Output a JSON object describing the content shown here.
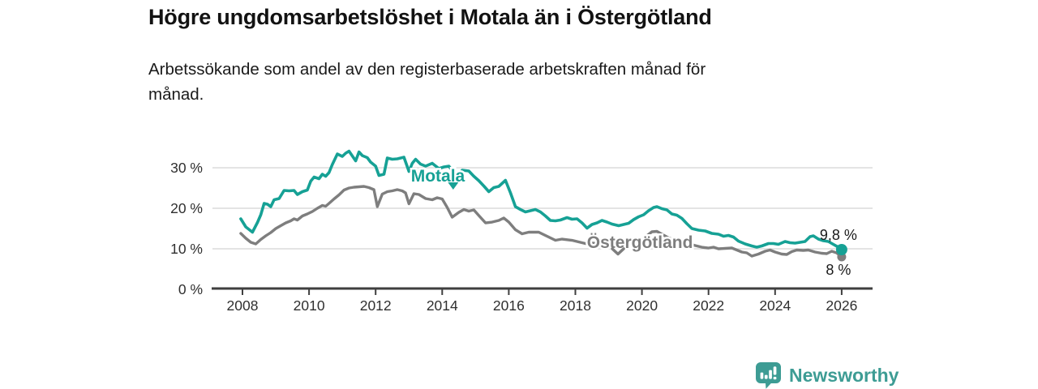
{
  "header": {
    "title": "Högre ungdomsarbetslöshet i Motala än i Östergötland",
    "subtitle_line1": "Arbetssökande som andel av den registerbaserade arbetskraften månad för",
    "subtitle_line2": "månad."
  },
  "footer": {
    "brand": "Newsworthy",
    "logo_icon": "newsworthy-speech-bubble-bar-chart-icon",
    "brand_color": "#3d9c94"
  },
  "colors": {
    "motala": "#16a195",
    "ostergotland": "#7e7e7e",
    "grid": "#dcdcdc",
    "axis": "#3f3f3f",
    "tick_text": "#2f2f2f",
    "annotation_text": "#1a1a1a",
    "background": "#ffffff"
  },
  "chart_data": {
    "type": "line",
    "title": "Högre ungdomsarbetslöshet i Motala än i Östergötland",
    "subtitle": "Arbetssökande som andel av den registerbaserade arbetskraften månad för månad.",
    "x_unit": "year (monthly observations)",
    "y_unit": "percent of labour force",
    "xlim": [
      2007.9,
      2026.95
    ],
    "ylim": [
      0,
      35.4
    ],
    "grid": "horizontal-only",
    "legend_position": "inline-labels-on-lines",
    "x_ticks": [
      2008,
      2010,
      2012,
      2014,
      2016,
      2018,
      2020,
      2022,
      2024,
      2026
    ],
    "y_ticks": [
      {
        "value": 0,
        "label": "0 %"
      },
      {
        "value": 10,
        "label": "10 %"
      },
      {
        "value": 20,
        "label": "20 %"
      },
      {
        "value": 30,
        "label": "30 %"
      }
    ],
    "series": [
      {
        "name": "Östergötland",
        "color": "#7e7e7e",
        "line_width": 3.4,
        "end_dot_radius": 5.5,
        "end_label": "8 %",
        "end_label_position": "below",
        "last_value": 8,
        "label": {
          "text": "Östergötland",
          "x": 2019.94,
          "y": 11.6
        },
        "pointer": {
          "shape": "chevron-down",
          "x": 2019.28,
          "y": 9.4
        },
        "points": [
          [
            2007.95,
            13.8
          ],
          [
            2008.1,
            12.6
          ],
          [
            2008.25,
            11.6
          ],
          [
            2008.4,
            11.2
          ],
          [
            2008.55,
            12.3
          ],
          [
            2008.7,
            13.2
          ],
          [
            2008.85,
            14.0
          ],
          [
            2009.0,
            15.0
          ],
          [
            2009.15,
            15.7
          ],
          [
            2009.3,
            16.4
          ],
          [
            2009.45,
            16.9
          ],
          [
            2009.55,
            17.4
          ],
          [
            2009.65,
            17.1
          ],
          [
            2009.8,
            18.1
          ],
          [
            2009.95,
            18.6
          ],
          [
            2010.1,
            19.2
          ],
          [
            2010.25,
            20.0
          ],
          [
            2010.4,
            20.7
          ],
          [
            2010.5,
            20.5
          ],
          [
            2010.6,
            21.2
          ],
          [
            2010.75,
            22.3
          ],
          [
            2010.9,
            23.3
          ],
          [
            2011.05,
            24.5
          ],
          [
            2011.2,
            25.0
          ],
          [
            2011.35,
            25.2
          ],
          [
            2011.5,
            25.3
          ],
          [
            2011.65,
            25.4
          ],
          [
            2011.8,
            25.1
          ],
          [
            2011.95,
            24.6
          ],
          [
            2012.05,
            20.4
          ],
          [
            2012.2,
            23.5
          ],
          [
            2012.35,
            24.1
          ],
          [
            2012.5,
            24.3
          ],
          [
            2012.65,
            24.6
          ],
          [
            2012.8,
            24.3
          ],
          [
            2012.9,
            23.8
          ],
          [
            2013.0,
            21.1
          ],
          [
            2013.15,
            23.6
          ],
          [
            2013.3,
            23.4
          ],
          [
            2013.5,
            22.4
          ],
          [
            2013.7,
            22.1
          ],
          [
            2013.85,
            22.6
          ],
          [
            2014.0,
            22.3
          ],
          [
            2014.15,
            20.2
          ],
          [
            2014.3,
            17.8
          ],
          [
            2014.5,
            19.0
          ],
          [
            2014.65,
            19.7
          ],
          [
            2014.8,
            19.3
          ],
          [
            2014.95,
            19.6
          ],
          [
            2015.1,
            18.2
          ],
          [
            2015.3,
            16.4
          ],
          [
            2015.5,
            16.6
          ],
          [
            2015.7,
            17.0
          ],
          [
            2015.85,
            17.6
          ],
          [
            2016.0,
            16.6
          ],
          [
            2016.2,
            14.7
          ],
          [
            2016.4,
            13.7
          ],
          [
            2016.6,
            14.1
          ],
          [
            2016.9,
            14.1
          ],
          [
            2017.15,
            13.1
          ],
          [
            2017.4,
            12.1
          ],
          [
            2017.6,
            12.4
          ],
          [
            2017.9,
            12.1
          ],
          [
            2018.1,
            11.7
          ],
          [
            2018.3,
            11.3
          ],
          [
            2018.5,
            11.4
          ],
          [
            2018.7,
            11.3
          ],
          [
            2018.9,
            11.1
          ],
          [
            2019.1,
            10.9
          ],
          [
            2019.3,
            11.0
          ],
          [
            2019.5,
            11.2
          ],
          [
            2019.7,
            11.5
          ],
          [
            2019.9,
            12.0
          ],
          [
            2020.1,
            12.9
          ],
          [
            2020.3,
            14.2
          ],
          [
            2020.45,
            14.3
          ],
          [
            2020.6,
            13.6
          ],
          [
            2020.8,
            12.7
          ],
          [
            2021.0,
            12.2
          ],
          [
            2021.2,
            11.8
          ],
          [
            2021.4,
            11.3
          ],
          [
            2021.6,
            10.8
          ],
          [
            2021.8,
            10.4
          ],
          [
            2022.0,
            10.2
          ],
          [
            2022.15,
            10.4
          ],
          [
            2022.3,
            10.0
          ],
          [
            2022.5,
            10.1
          ],
          [
            2022.7,
            10.2
          ],
          [
            2022.85,
            9.7
          ],
          [
            2023.0,
            9.2
          ],
          [
            2023.15,
            9.0
          ],
          [
            2023.3,
            8.2
          ],
          [
            2023.5,
            8.7
          ],
          [
            2023.7,
            9.4
          ],
          [
            2023.85,
            9.7
          ],
          [
            2024.0,
            9.2
          ],
          [
            2024.2,
            8.7
          ],
          [
            2024.35,
            8.6
          ],
          [
            2024.5,
            9.3
          ],
          [
            2024.65,
            9.7
          ],
          [
            2024.85,
            9.6
          ],
          [
            2025.0,
            9.7
          ],
          [
            2025.2,
            9.2
          ],
          [
            2025.4,
            8.9
          ],
          [
            2025.55,
            8.8
          ],
          [
            2025.7,
            9.4
          ],
          [
            2025.85,
            9.0
          ],
          [
            2026.0,
            8.0
          ]
        ]
      },
      {
        "name": "Motala",
        "color": "#16a195",
        "line_width": 3.6,
        "end_dot_radius": 7,
        "end_label": "9,8 %",
        "end_label_position": "above",
        "last_value": 9.8,
        "label": {
          "text": "Motala",
          "x": 2013.87,
          "y": 28.0
        },
        "pointer": {
          "shape": "triangle-down",
          "x": 2014.33,
          "y": 25.5
        },
        "points": [
          [
            2007.95,
            17.4
          ],
          [
            2008.1,
            15.4
          ],
          [
            2008.3,
            14.1
          ],
          [
            2008.45,
            16.5
          ],
          [
            2008.55,
            18.4
          ],
          [
            2008.65,
            21.2
          ],
          [
            2008.75,
            21.0
          ],
          [
            2008.85,
            20.4
          ],
          [
            2008.95,
            22.1
          ],
          [
            2009.1,
            22.4
          ],
          [
            2009.25,
            24.4
          ],
          [
            2009.4,
            24.3
          ],
          [
            2009.55,
            24.4
          ],
          [
            2009.65,
            23.4
          ],
          [
            2009.8,
            24.1
          ],
          [
            2009.95,
            24.5
          ],
          [
            2010.05,
            26.7
          ],
          [
            2010.15,
            27.7
          ],
          [
            2010.3,
            27.3
          ],
          [
            2010.4,
            28.4
          ],
          [
            2010.5,
            27.9
          ],
          [
            2010.6,
            28.8
          ],
          [
            2010.7,
            30.8
          ],
          [
            2010.85,
            33.4
          ],
          [
            2011.0,
            32.8
          ],
          [
            2011.1,
            33.6
          ],
          [
            2011.2,
            34.1
          ],
          [
            2011.3,
            32.9
          ],
          [
            2011.4,
            31.7
          ],
          [
            2011.5,
            33.9
          ],
          [
            2011.6,
            33.0
          ],
          [
            2011.75,
            32.5
          ],
          [
            2011.85,
            31.4
          ],
          [
            2012.0,
            30.4
          ],
          [
            2012.1,
            28.1
          ],
          [
            2012.25,
            28.4
          ],
          [
            2012.35,
            32.4
          ],
          [
            2012.5,
            32.1
          ],
          [
            2012.65,
            32.2
          ],
          [
            2012.85,
            32.6
          ],
          [
            2013.0,
            29.1
          ],
          [
            2013.1,
            31.1
          ],
          [
            2013.2,
            32.1
          ],
          [
            2013.35,
            30.9
          ],
          [
            2013.5,
            30.4
          ],
          [
            2013.7,
            31.1
          ],
          [
            2013.9,
            29.8
          ],
          [
            2014.05,
            30.2
          ],
          [
            2014.2,
            30.4
          ],
          [
            2014.45,
            27.7
          ],
          [
            2014.6,
            29.4
          ],
          [
            2014.8,
            29.2
          ],
          [
            2014.95,
            27.9
          ],
          [
            2015.1,
            26.8
          ],
          [
            2015.25,
            25.5
          ],
          [
            2015.4,
            24.1
          ],
          [
            2015.55,
            25.1
          ],
          [
            2015.7,
            25.4
          ],
          [
            2015.9,
            26.9
          ],
          [
            2016.05,
            23.8
          ],
          [
            2016.2,
            20.4
          ],
          [
            2016.35,
            19.7
          ],
          [
            2016.5,
            19.1
          ],
          [
            2016.65,
            19.4
          ],
          [
            2016.8,
            19.7
          ],
          [
            2016.95,
            19.1
          ],
          [
            2017.1,
            18.1
          ],
          [
            2017.25,
            17.0
          ],
          [
            2017.4,
            16.9
          ],
          [
            2017.55,
            17.1
          ],
          [
            2017.75,
            17.7
          ],
          [
            2017.9,
            17.3
          ],
          [
            2018.05,
            17.4
          ],
          [
            2018.2,
            16.4
          ],
          [
            2018.35,
            15.1
          ],
          [
            2018.5,
            16.0
          ],
          [
            2018.65,
            16.4
          ],
          [
            2018.8,
            17.0
          ],
          [
            2018.95,
            16.6
          ],
          [
            2019.1,
            16.1
          ],
          [
            2019.3,
            15.7
          ],
          [
            2019.45,
            16.0
          ],
          [
            2019.6,
            16.3
          ],
          [
            2019.75,
            17.2
          ],
          [
            2019.9,
            17.9
          ],
          [
            2020.05,
            18.4
          ],
          [
            2020.2,
            19.4
          ],
          [
            2020.35,
            20.2
          ],
          [
            2020.45,
            20.4
          ],
          [
            2020.6,
            19.9
          ],
          [
            2020.75,
            19.6
          ],
          [
            2020.9,
            18.6
          ],
          [
            2021.05,
            18.3
          ],
          [
            2021.2,
            17.5
          ],
          [
            2021.35,
            16.2
          ],
          [
            2021.5,
            15.0
          ],
          [
            2021.7,
            14.6
          ],
          [
            2021.9,
            14.4
          ],
          [
            2022.1,
            13.8
          ],
          [
            2022.3,
            13.6
          ],
          [
            2022.45,
            13.1
          ],
          [
            2022.6,
            13.3
          ],
          [
            2022.75,
            12.9
          ],
          [
            2022.9,
            11.9
          ],
          [
            2023.1,
            11.2
          ],
          [
            2023.3,
            10.7
          ],
          [
            2023.45,
            10.4
          ],
          [
            2023.6,
            10.7
          ],
          [
            2023.8,
            11.3
          ],
          [
            2023.95,
            11.3
          ],
          [
            2024.1,
            11.1
          ],
          [
            2024.3,
            11.8
          ],
          [
            2024.45,
            11.5
          ],
          [
            2024.6,
            11.4
          ],
          [
            2024.75,
            11.6
          ],
          [
            2024.9,
            11.8
          ],
          [
            2025.05,
            13.0
          ],
          [
            2025.15,
            13.2
          ],
          [
            2025.3,
            12.4
          ],
          [
            2025.45,
            12.0
          ],
          [
            2025.6,
            11.8
          ],
          [
            2025.75,
            11.1
          ],
          [
            2025.9,
            10.4
          ],
          [
            2026.0,
            9.8
          ]
        ]
      }
    ]
  }
}
